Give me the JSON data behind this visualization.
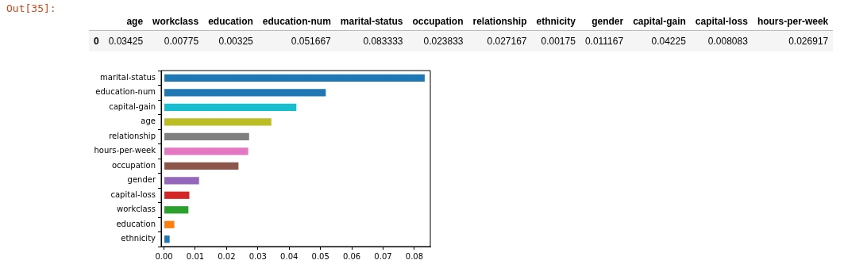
{
  "chart_data": [
    {
      "type": "other",
      "annotations": [
        "Out[35]:",
        "0"
      ],
      "data_labels": true,
      "categories": [
        "age",
        "workclass",
        "education",
        "education-num",
        "marital-status",
        "occupation",
        "relationship",
        "ethnicity",
        "gender",
        "capital-gain",
        "capital-loss",
        "hours-per-week"
      ],
      "values": [
        0.03425,
        0.00775,
        0.00325,
        0.051667,
        0.083333,
        0.023833,
        0.027167,
        0.00175,
        0.011167,
        0.04225,
        0.008083,
        0.026917
      ]
    },
    {
      "type": "bar",
      "orientation": "horizontal",
      "categories": [
        "marital-status",
        "education-num",
        "capital-gain",
        "age",
        "relationship",
        "hours-per-week",
        "occupation",
        "gender",
        "capital-loss",
        "workclass",
        "education",
        "ethnicity"
      ],
      "values": [
        0.0833,
        0.0517,
        0.0423,
        0.0343,
        0.0272,
        0.0269,
        0.0238,
        0.0112,
        0.0081,
        0.0078,
        0.0033,
        0.0018
      ],
      "colors": [
        "#1f77b4",
        "#1f77b4",
        "#17becf",
        "#bcbd22",
        "#7f7f7f",
        "#e377c2",
        "#8c564b",
        "#9467bd",
        "#d62728",
        "#2ca02c",
        "#ff7f0e",
        "#1f77b4"
      ],
      "xlim": [
        -0.0009,
        0.0851
      ],
      "xticks": [
        {
          "value": 0,
          "label": "0.00"
        },
        {
          "value": 0.01,
          "label": "0.01"
        },
        {
          "value": 0.02,
          "label": "0.02"
        },
        {
          "value": 0.03,
          "label": "0.03"
        },
        {
          "value": 0.04,
          "label": "0.04"
        },
        {
          "value": 0.05,
          "label": "0.05"
        },
        {
          "value": 0.06,
          "label": "0.06"
        },
        {
          "value": 0.07,
          "label": "0.07"
        },
        {
          "value": 0.08,
          "label": "0.08"
        }
      ],
      "grid": false,
      "legend": false
    }
  ]
}
